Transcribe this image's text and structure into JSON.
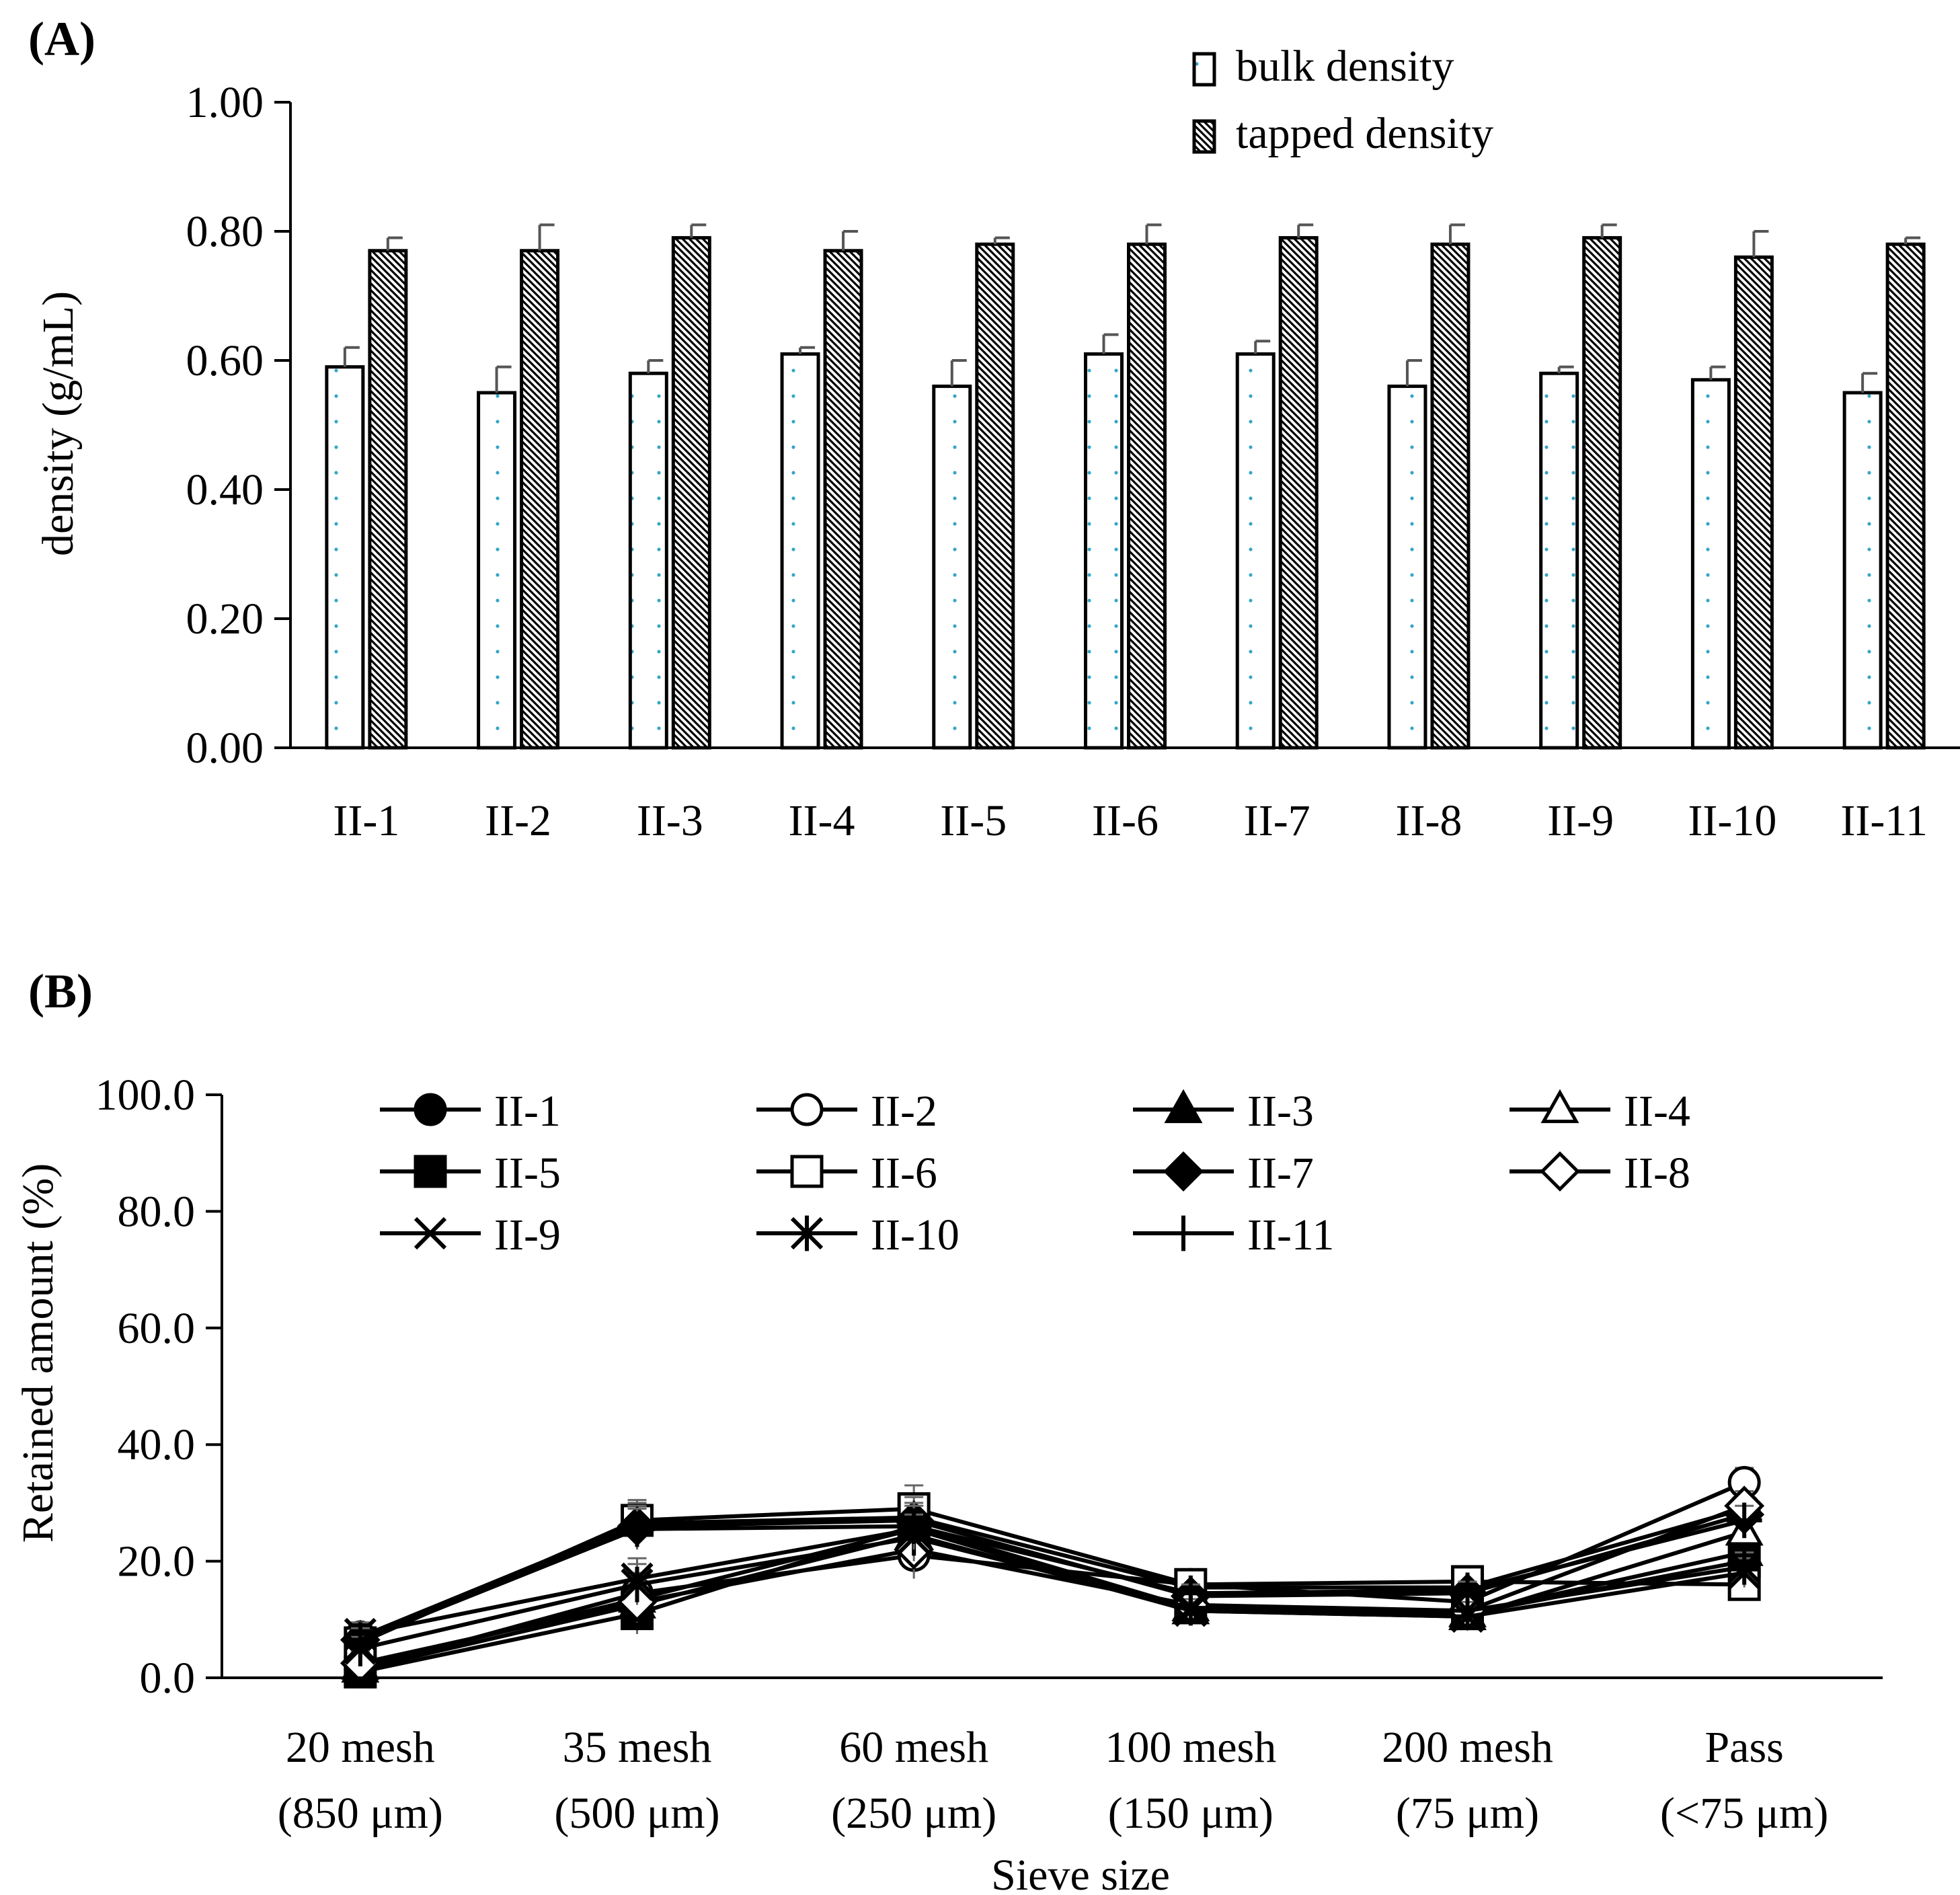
{
  "chart_data": [
    {
      "panel": "(A)",
      "type": "bar",
      "ylabel": "density (g/mL)",
      "ylim": [
        0,
        1.0
      ],
      "ytick_step": 0.2,
      "yticks": [
        "0.00",
        "0.20",
        "0.40",
        "0.60",
        "0.80",
        "1.00"
      ],
      "categories": [
        "II-1",
        "II-2",
        "II-3",
        "II-4",
        "II-5",
        "II-6",
        "II-7",
        "II-8",
        "II-9",
        "II-10",
        "II-11"
      ],
      "legend_position": "top-right",
      "series": [
        {
          "name": "bulk density",
          "values": [
            0.59,
            0.55,
            0.58,
            0.61,
            0.56,
            0.61,
            0.61,
            0.56,
            0.58,
            0.57,
            0.55
          ],
          "errors": [
            0.03,
            0.04,
            0.02,
            0.01,
            0.04,
            0.03,
            0.02,
            0.04,
            0.01,
            0.02,
            0.03
          ]
        },
        {
          "name": "tapped density",
          "values": [
            0.77,
            0.77,
            0.79,
            0.77,
            0.78,
            0.78,
            0.79,
            0.78,
            0.79,
            0.76,
            0.78
          ],
          "errors": [
            0.02,
            0.04,
            0.02,
            0.03,
            0.01,
            0.03,
            0.02,
            0.03,
            0.02,
            0.04,
            0.01
          ]
        }
      ]
    },
    {
      "panel": "(B)",
      "type": "line",
      "xlabel": "Sieve size",
      "ylabel": "Retained amount (%)",
      "ylim": [
        0,
        100
      ],
      "ytick_step": 20,
      "yticks": [
        "0.0",
        "20.0",
        "40.0",
        "60.0",
        "80.0",
        "100.0"
      ],
      "categories": [
        "20 mesh",
        "35 mesh",
        "60 mesh",
        "100 mesh",
        "200 mesh",
        "Pass"
      ],
      "category_sublabels": [
        "(850 μm)",
        "(500 μm)",
        "(250 μm)",
        "(150 μm)",
        "(75 μm)",
        "(<75 μm)"
      ],
      "legend_position": "top",
      "series": [
        {
          "name": "II-1",
          "marker": "circle-filled",
          "values": [
            7.0,
            26.5,
            27.5,
            15.5,
            15.5,
            29.0
          ]
        },
        {
          "name": "II-2",
          "marker": "circle-open",
          "values": [
            1.5,
            14.5,
            21.0,
            16.0,
            13.0,
            33.5
          ]
        },
        {
          "name": "II-3",
          "marker": "triangle-filled",
          "values": [
            2.0,
            13.5,
            25.5,
            12.0,
            11.0,
            21.5
          ]
        },
        {
          "name": "II-4",
          "marker": "triangle-open",
          "values": [
            1.5,
            12.5,
            24.5,
            11.5,
            10.5,
            25.0
          ]
        },
        {
          "name": "II-5",
          "marker": "square-filled",
          "values": [
            1.0,
            11.0,
            26.0,
            12.0,
            11.0,
            20.0
          ]
        },
        {
          "name": "II-6",
          "marker": "square-open",
          "values": [
            6.0,
            27.0,
            29.0,
            16.0,
            16.5,
            16.0
          ]
        },
        {
          "name": "II-7",
          "marker": "diamond-filled",
          "values": [
            6.5,
            26.0,
            27.0,
            14.0,
            14.5,
            28.0
          ]
        },
        {
          "name": "II-8",
          "marker": "diamond-open",
          "values": [
            2.5,
            13.0,
            22.0,
            12.5,
            11.5,
            29.5
          ]
        },
        {
          "name": "II-9",
          "marker": "x",
          "values": [
            7.5,
            17.0,
            25.5,
            11.5,
            10.5,
            18.0
          ]
        },
        {
          "name": "II-10",
          "marker": "asterisk",
          "values": [
            5.0,
            16.0,
            24.0,
            12.0,
            11.5,
            19.0
          ]
        },
        {
          "name": "II-11",
          "marker": "plus",
          "values": [
            6.5,
            25.5,
            26.0,
            14.5,
            15.0,
            27.0
          ]
        }
      ]
    }
  ]
}
